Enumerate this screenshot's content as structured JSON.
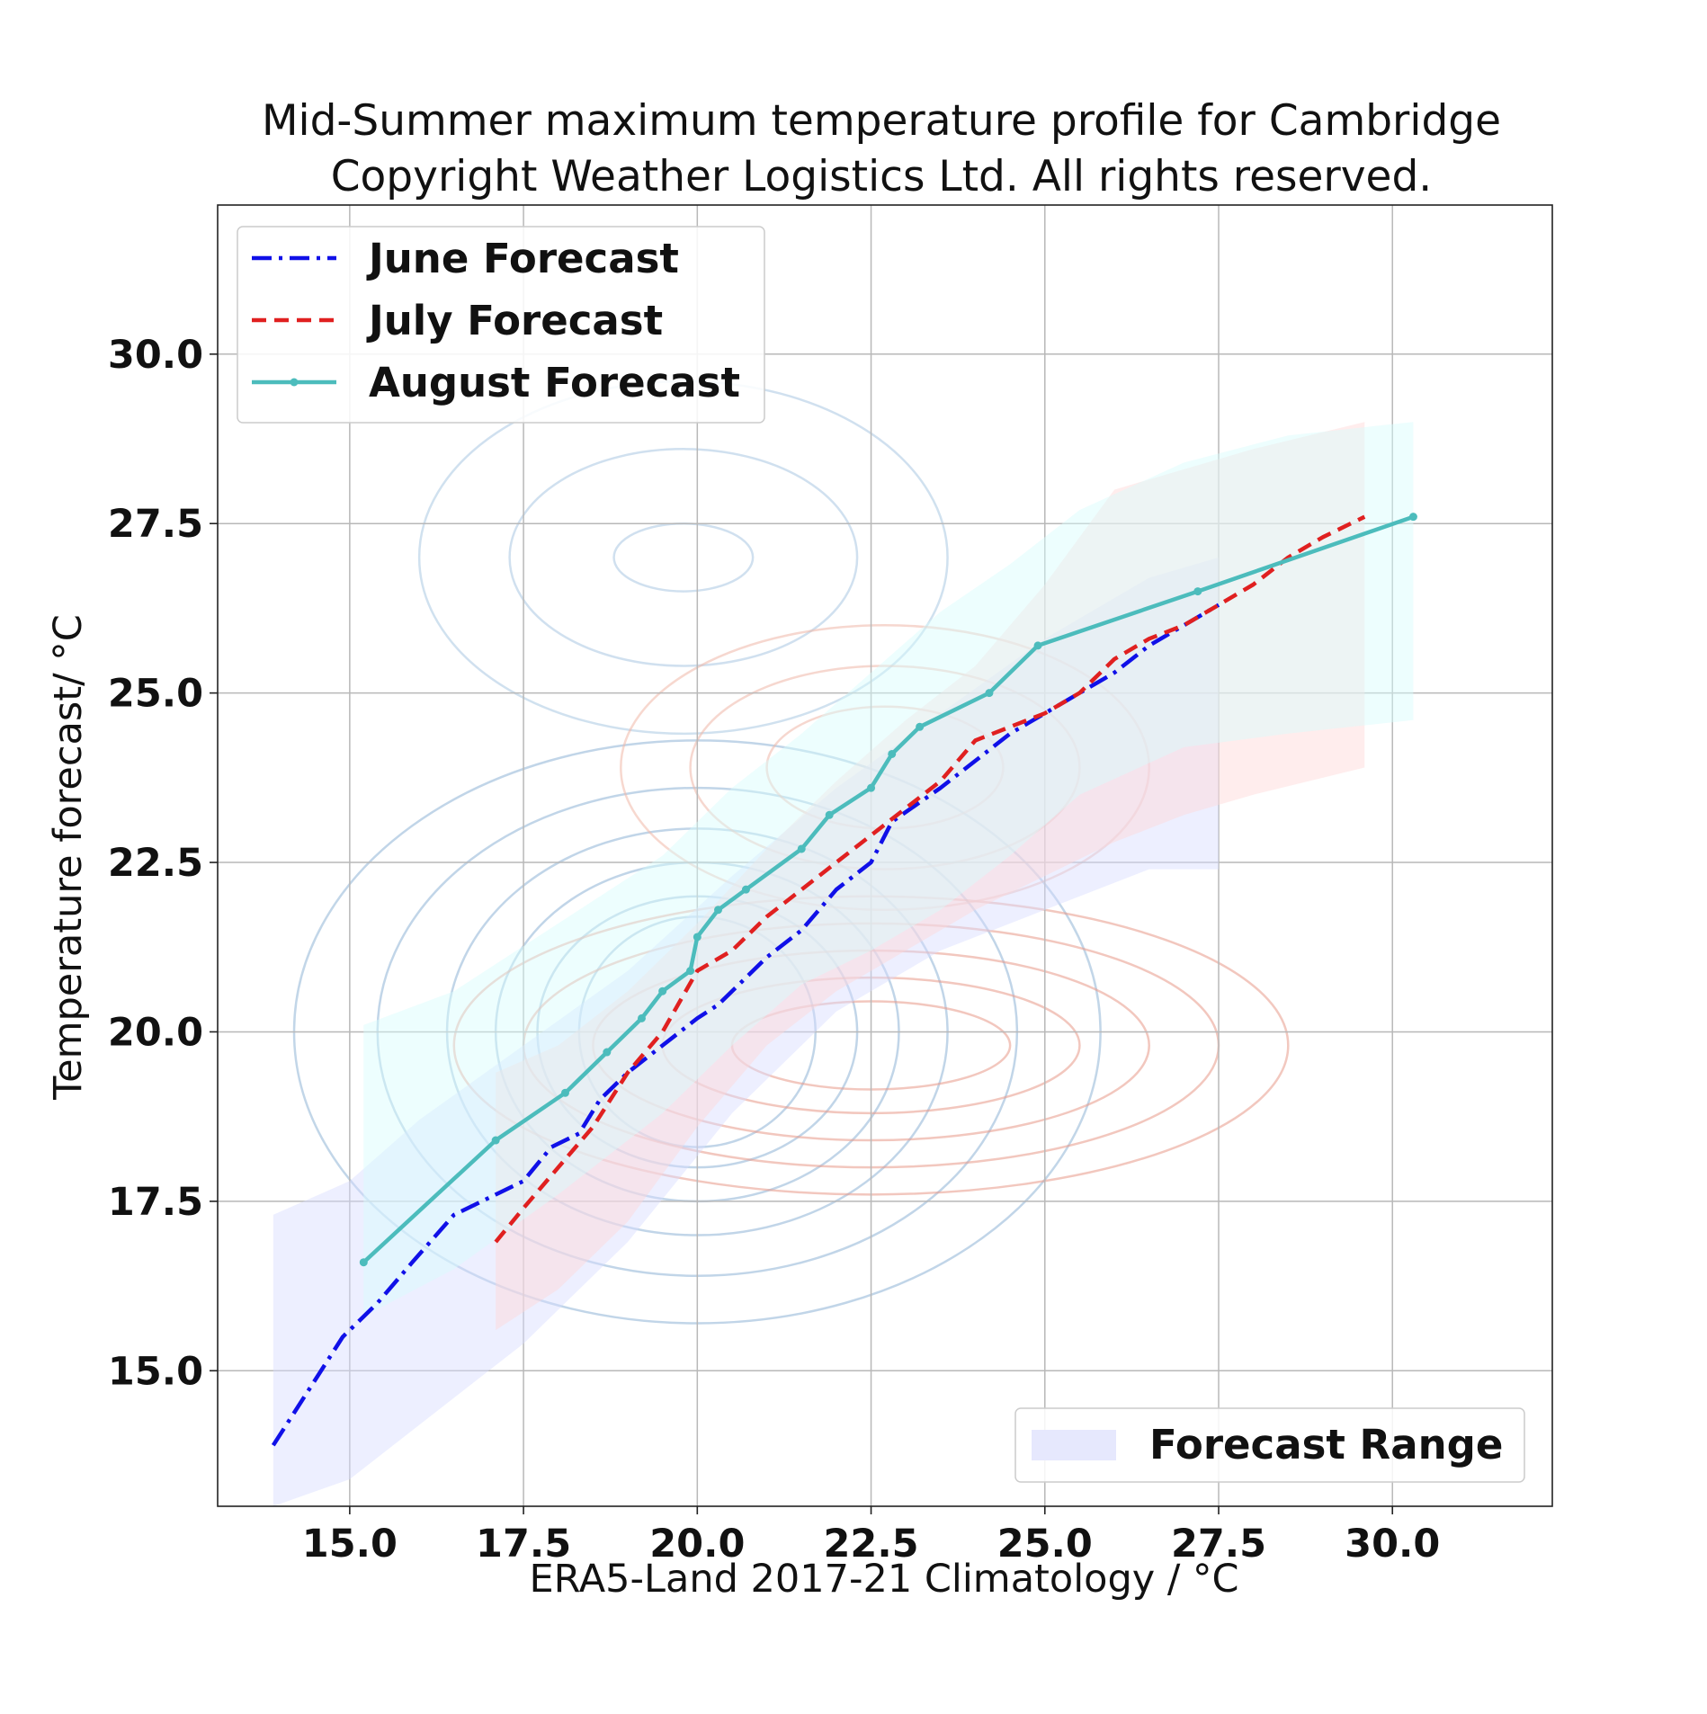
{
  "chart_data": {
    "type": "line",
    "title": "Mid-Summer maximum temperature profile for Cambridge",
    "subtitle": "Copyright Weather Logistics Ltd. All rights reserved.",
    "xlabel": "ERA5-Land 2017-21 Climatology / °C",
    "ylabel": "Temperature forecast/ °C",
    "xlim": [
      13.1,
      32.3
    ],
    "ylim": [
      13.0,
      32.2
    ],
    "xticks": [
      "15.0",
      "17.5",
      "20.0",
      "22.5",
      "25.0",
      "27.5",
      "30.0"
    ],
    "yticks": [
      "15.0",
      "17.5",
      "20.0",
      "22.5",
      "25.0",
      "27.5",
      "30.0"
    ],
    "grid": true,
    "legend_position": "upper-left",
    "range_legend_position": "lower-right",
    "series": [
      {
        "name": "June Forecast",
        "color": "#1010e8",
        "style": "dash-dot",
        "x": [
          13.9,
          14.4,
          14.9,
          15.4,
          15.9,
          16.5,
          17.5,
          17.9,
          18.3,
          18.6,
          19.0,
          19.5,
          20.0,
          20.3,
          20.6,
          21.0,
          21.5,
          22.0,
          22.5,
          22.8,
          23.5,
          24.0,
          24.5,
          25.0,
          25.5,
          26.0,
          26.5,
          27.0,
          27.5
        ],
        "y": [
          13.9,
          14.7,
          15.5,
          16.0,
          16.6,
          17.3,
          17.8,
          18.3,
          18.5,
          19.0,
          19.4,
          19.8,
          20.2,
          20.4,
          20.7,
          21.1,
          21.5,
          22.1,
          22.5,
          23.1,
          23.6,
          24.0,
          24.4,
          24.7,
          25.0,
          25.3,
          25.7,
          26.0,
          26.3
        ]
      },
      {
        "name": "July Forecast",
        "color": "#e02020",
        "style": "dashed",
        "x": [
          17.1,
          17.5,
          18.0,
          18.5,
          19.0,
          19.5,
          20.0,
          20.5,
          21.0,
          21.5,
          22.0,
          22.5,
          23.0,
          23.5,
          24.0,
          24.5,
          25.0,
          25.5,
          26.0,
          26.5,
          27.0,
          27.5,
          28.0,
          28.5,
          29.0,
          29.6
        ],
        "y": [
          16.9,
          17.4,
          18.0,
          18.6,
          19.4,
          20.0,
          20.9,
          21.2,
          21.7,
          22.1,
          22.5,
          22.9,
          23.3,
          23.7,
          24.3,
          24.5,
          24.7,
          25.0,
          25.5,
          25.8,
          26.0,
          26.3,
          26.6,
          27.0,
          27.3,
          27.6
        ]
      },
      {
        "name": "August Forecast",
        "color": "#4cbcbc",
        "style": "solid-star",
        "x": [
          15.2,
          17.1,
          18.1,
          18.7,
          19.2,
          19.5,
          19.9,
          20.0,
          20.3,
          20.7,
          21.5,
          21.9,
          22.5,
          22.8,
          23.2,
          24.2,
          24.9,
          27.2,
          30.3
        ],
        "y": [
          16.6,
          18.4,
          19.1,
          19.7,
          20.2,
          20.6,
          20.9,
          21.4,
          21.8,
          22.1,
          22.7,
          23.2,
          23.6,
          24.1,
          24.5,
          25.0,
          25.7,
          26.5,
          27.6
        ]
      }
    ],
    "ranges": [
      {
        "name": "Forecast Range",
        "color": "#d8dcff",
        "x": [
          13.9,
          15.0,
          16.0,
          17.5,
          19.0,
          20.5,
          22.0,
          23.5,
          25.0,
          26.5,
          27.5
        ],
        "low": [
          13.0,
          13.4,
          14.2,
          15.4,
          16.9,
          18.8,
          20.3,
          21.2,
          21.8,
          22.4,
          22.4
        ],
        "high": [
          17.3,
          17.8,
          18.7,
          19.8,
          20.9,
          22.3,
          23.6,
          24.7,
          25.8,
          26.7,
          27.0
        ]
      },
      {
        "color": "#ffd8d8",
        "x": [
          17.1,
          18.0,
          19.0,
          20.0,
          21.0,
          22.0,
          23.0,
          24.0,
          25.0,
          26.0,
          27.0,
          28.0,
          29.6
        ],
        "low": [
          15.6,
          16.2,
          17.2,
          18.6,
          19.8,
          20.6,
          21.2,
          21.8,
          22.3,
          22.8,
          23.2,
          23.5,
          23.9
        ],
        "high": [
          19.4,
          19.8,
          20.6,
          21.6,
          22.7,
          23.7,
          24.6,
          25.4,
          26.6,
          28.0,
          28.3,
          28.6,
          29.0
        ]
      },
      {
        "color": "#d8fcfc",
        "x": [
          15.2,
          16.5,
          18.0,
          19.5,
          20.5,
          21.5,
          22.5,
          23.5,
          24.5,
          25.5,
          27.0,
          28.5,
          30.3
        ],
        "low": [
          15.8,
          16.5,
          17.6,
          18.8,
          19.8,
          20.7,
          21.2,
          21.8,
          22.6,
          23.5,
          24.2,
          24.4,
          24.6
        ],
        "high": [
          20.1,
          20.6,
          21.6,
          22.6,
          23.6,
          24.4,
          25.3,
          26.2,
          26.9,
          27.7,
          28.4,
          28.8,
          29.0
        ]
      }
    ],
    "background_contours": [
      {
        "color": "#8fb4d6",
        "cx": 20.0,
        "cy": 20.0,
        "radii": [
          [
            1.7,
            1.7
          ],
          [
            2.3,
            2.0
          ],
          [
            2.9,
            2.5
          ],
          [
            3.6,
            3.0
          ],
          [
            4.6,
            3.6
          ],
          [
            5.8,
            4.3
          ]
        ]
      },
      {
        "color": "#aac8e2",
        "cx": 19.8,
        "cy": 27.0,
        "radii": [
          [
            1.0,
            0.5
          ],
          [
            2.5,
            1.6
          ],
          [
            3.8,
            2.6
          ]
        ]
      },
      {
        "color": "#e89a8a",
        "cx": 22.5,
        "cy": 19.8,
        "radii": [
          [
            2.0,
            0.65
          ],
          [
            3.0,
            1.0
          ],
          [
            4.0,
            1.4
          ],
          [
            5.0,
            1.8
          ],
          [
            6.0,
            2.2
          ]
        ]
      },
      {
        "color": "#f0b8a8",
        "cx": 22.7,
        "cy": 23.9,
        "radii": [
          [
            1.7,
            0.9
          ],
          [
            2.8,
            1.5
          ],
          [
            3.8,
            2.1
          ]
        ]
      }
    ]
  }
}
